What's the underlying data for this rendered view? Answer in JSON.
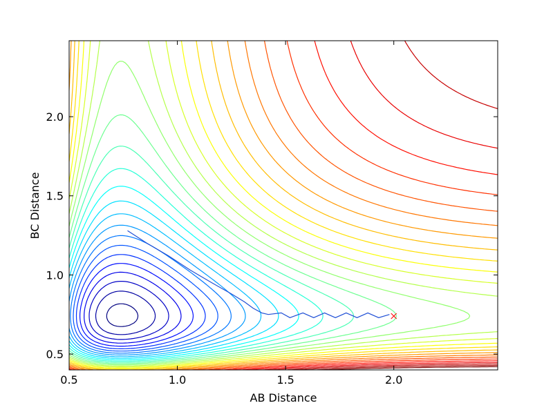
{
  "chart_data": {
    "type": "contour",
    "title": "",
    "xlabel": "AB Distance",
    "ylabel": "BC Distance",
    "xlim": [
      0.5,
      2.48
    ],
    "ylim": [
      0.4,
      2.48
    ],
    "xticks": [
      0.5,
      1.0,
      1.5,
      2.0
    ],
    "yticks": [
      0.5,
      1.0,
      1.5,
      2.0
    ],
    "xtick_labels": [
      "0.5",
      "1.0",
      "1.5",
      "2.0"
    ],
    "ytick_labels": [
      "0.5",
      "1.0",
      "1.5",
      "2.0"
    ],
    "contour_levels": 30,
    "colormap": "jet",
    "colormap_colors": [
      "#00007f",
      "#0000ff",
      "#007fff",
      "#00ffff",
      "#7fff7f",
      "#ffff00",
      "#ff7f00",
      "#ff0000",
      "#7f0000"
    ],
    "trajectory": {
      "name": "trajectory",
      "color": "#1f4fd6",
      "points": [
        [
          0.77,
          1.28
        ],
        [
          0.86,
          1.2
        ],
        [
          0.96,
          1.12
        ],
        [
          1.06,
          1.03
        ],
        [
          1.16,
          0.95
        ],
        [
          1.25,
          0.88
        ],
        [
          1.31,
          0.83
        ],
        [
          1.35,
          0.79
        ],
        [
          1.39,
          0.76
        ],
        [
          1.42,
          0.75
        ],
        [
          1.48,
          0.76
        ],
        [
          1.52,
          0.73
        ],
        [
          1.58,
          0.76
        ],
        [
          1.63,
          0.73
        ],
        [
          1.68,
          0.76
        ],
        [
          1.73,
          0.73
        ],
        [
          1.78,
          0.76
        ],
        [
          1.83,
          0.73
        ],
        [
          1.88,
          0.76
        ],
        [
          1.93,
          0.73
        ],
        [
          1.98,
          0.75
        ]
      ]
    },
    "end_marker": {
      "symbol": "x",
      "color": "#ff0000",
      "x": 2.0,
      "y": 0.74
    },
    "grid": false,
    "legend": "none"
  }
}
